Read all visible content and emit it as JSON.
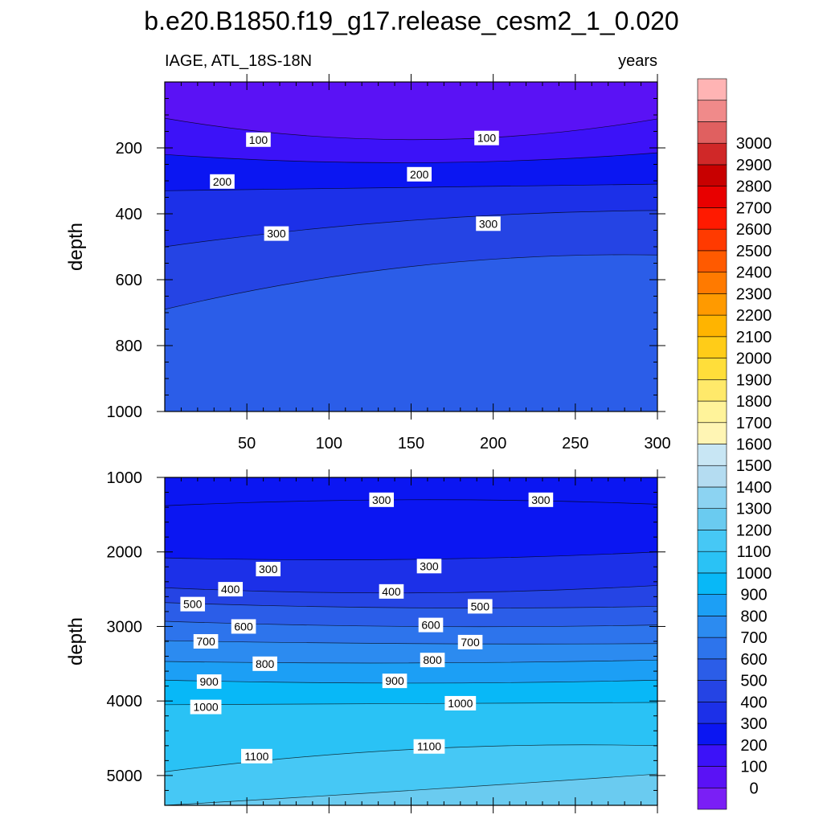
{
  "title": "b.e20.B1850.f19_g17.release_cesm2_1_0.020",
  "subtitle_left": "IAGE, ATL_18S-18N",
  "subtitle_right": "years",
  "chart_data": {
    "type": "contour",
    "colors": {
      "levels": [
        0,
        100,
        200,
        300,
        400,
        500,
        600,
        700,
        800,
        900,
        1000,
        1100,
        1200,
        1300,
        1400,
        1500,
        1600,
        1700,
        1800,
        1900,
        2000,
        2100,
        2200,
        2300,
        2400,
        2500,
        2600,
        2700,
        2800,
        2900,
        3000
      ],
      "fills": [
        "#7a1ff5",
        "#5a12f5",
        "#3c12f8",
        "#0b16f2",
        "#1c30e8",
        "#2544e4",
        "#2b5de8",
        "#2d74ec",
        "#2c8bf0",
        "#1c9ff5",
        "#08b8f7",
        "#2ac2f5",
        "#46c8f5",
        "#6acbf0",
        "#8cd3f2",
        "#b4dcf1",
        "#c8e6f4",
        "#fff5b4",
        "#fff39a",
        "#ffe96a",
        "#ffde3a",
        "#ffcc18",
        "#ffb400",
        "#ff9a00",
        "#ff7a00",
        "#ff5a00",
        "#ff3a00",
        "#ff1a00",
        "#e80000",
        "#c80000",
        "#d02828",
        "#e06060",
        "#f08a8a",
        "#ffb4b4"
      ]
    },
    "colorbar": {
      "labels": [
        "0",
        "100",
        "200",
        "300",
        "400",
        "500",
        "600",
        "700",
        "800",
        "900",
        "1000",
        "1100",
        "1200",
        "1300",
        "1400",
        "1500",
        "1600",
        "1700",
        "1800",
        "1900",
        "2000",
        "2100",
        "2200",
        "2300",
        "2400",
        "2500",
        "2600",
        "2700",
        "2800",
        "2900",
        "3000"
      ],
      "box_colors": [
        "#7a1ff5",
        "#5a12f5",
        "#3c12f8",
        "#0b16f2",
        "#1c30e8",
        "#2544e4",
        "#2b5de8",
        "#2d74ec",
        "#2c8bf0",
        "#1c9ff5",
        "#08b8f7",
        "#2ac2f5",
        "#46c8f5",
        "#6acbf0",
        "#8cd3f2",
        "#b4dcf1",
        "#c8e6f4",
        "#fff5b4",
        "#fff39a",
        "#ffe96a",
        "#ffde3a",
        "#ffcc18",
        "#ffb400",
        "#ff9a00",
        "#ff7a00",
        "#ff5a00",
        "#ff3a00",
        "#ff1a00",
        "#e80000",
        "#c80000",
        "#d02828",
        "#e06060",
        "#f08a8a",
        "#ffb4b4"
      ]
    },
    "x": {
      "label": "",
      "range": [
        0,
        300
      ],
      "ticks": [
        50,
        100,
        150,
        200,
        250,
        300
      ],
      "minor_step": 10
    },
    "panels": [
      {
        "name": "upper",
        "ylabel": "depth",
        "yrange": [
          0,
          1000
        ],
        "yticks": [
          200,
          400,
          600,
          800,
          1000
        ],
        "minor_step": 50,
        "show_xtick_labels": true,
        "contours": [
          {
            "level": 100,
            "y_start": 110,
            "y_mid": 175,
            "y_end": 112
          },
          {
            "level": 200,
            "y_start": 220,
            "y_mid": 245,
            "y_end": 215
          },
          {
            "level": 300,
            "y_start": 330,
            "y_mid": 320,
            "y_end": 310
          },
          {
            "level": 400,
            "y_start": 500,
            "y_mid": 420,
            "y_end": 390
          },
          {
            "level": 500,
            "y_start": 690,
            "y_mid": 560,
            "y_end": 525
          }
        ],
        "labels": [
          {
            "text": "100",
            "x": 57,
            "y": 175
          },
          {
            "text": "100",
            "x": 196,
            "y": 170
          },
          {
            "text": "200",
            "x": 35,
            "y": 302
          },
          {
            "text": "200",
            "x": 155,
            "y": 280
          },
          {
            "text": "300",
            "x": 68,
            "y": 460
          },
          {
            "text": "300",
            "x": 197,
            "y": 430
          }
        ]
      },
      {
        "name": "lower",
        "ylabel": "depth",
        "yrange": [
          1000,
          5400
        ],
        "yticks": [
          1000,
          2000,
          3000,
          4000,
          5000
        ],
        "minor_step": 200,
        "show_xtick_labels": false,
        "contours": [
          {
            "level": 300,
            "y_start": 1380,
            "y_mid": 1300,
            "y_end": 1360
          },
          {
            "level": 300,
            "y_start": 2080,
            "y_mid": 2100,
            "y_end": 2000
          },
          {
            "level": 400,
            "y_start": 2480,
            "y_mid": 2550,
            "y_end": 2450
          },
          {
            "level": 500,
            "y_start": 2680,
            "y_mid": 2750,
            "y_end": 2730
          },
          {
            "level": 600,
            "y_start": 2930,
            "y_mid": 3000,
            "y_end": 2980
          },
          {
            "level": 700,
            "y_start": 3190,
            "y_mid": 3230,
            "y_end": 3230
          },
          {
            "level": 800,
            "y_start": 3470,
            "y_mid": 3490,
            "y_end": 3450
          },
          {
            "level": 900,
            "y_start": 3720,
            "y_mid": 3760,
            "y_end": 3720
          },
          {
            "level": 1000,
            "y_start": 4050,
            "y_mid": 4030,
            "y_end": 4020
          },
          {
            "level": 1100,
            "y_start": 4950,
            "y_mid": 4650,
            "y_end": 4600
          },
          {
            "level": 1200,
            "y_start": 5400,
            "y_mid": 5200,
            "y_end": 4980
          }
        ],
        "labels": [
          {
            "text": "300",
            "x": 132,
            "y": 1300
          },
          {
            "text": "300",
            "x": 229,
            "y": 1300
          },
          {
            "text": "300",
            "x": 63,
            "y": 2230
          },
          {
            "text": "300",
            "x": 161,
            "y": 2190
          },
          {
            "text": "400",
            "x": 40,
            "y": 2500
          },
          {
            "text": "400",
            "x": 138,
            "y": 2530
          },
          {
            "text": "500",
            "x": 17,
            "y": 2700
          },
          {
            "text": "500",
            "x": 192,
            "y": 2730
          },
          {
            "text": "600",
            "x": 48,
            "y": 3000
          },
          {
            "text": "600",
            "x": 162,
            "y": 2980
          },
          {
            "text": "700",
            "x": 25,
            "y": 3200
          },
          {
            "text": "700",
            "x": 186,
            "y": 3210
          },
          {
            "text": "800",
            "x": 61,
            "y": 3500
          },
          {
            "text": "800",
            "x": 163,
            "y": 3450
          },
          {
            "text": "900",
            "x": 27,
            "y": 3740
          },
          {
            "text": "900",
            "x": 140,
            "y": 3730
          },
          {
            "text": "1000",
            "x": 25,
            "y": 4080
          },
          {
            "text": "1000",
            "x": 180,
            "y": 4030
          },
          {
            "text": "1100",
            "x": 56,
            "y": 4740
          },
          {
            "text": "1100",
            "x": 161,
            "y": 4610
          }
        ]
      }
    ]
  }
}
